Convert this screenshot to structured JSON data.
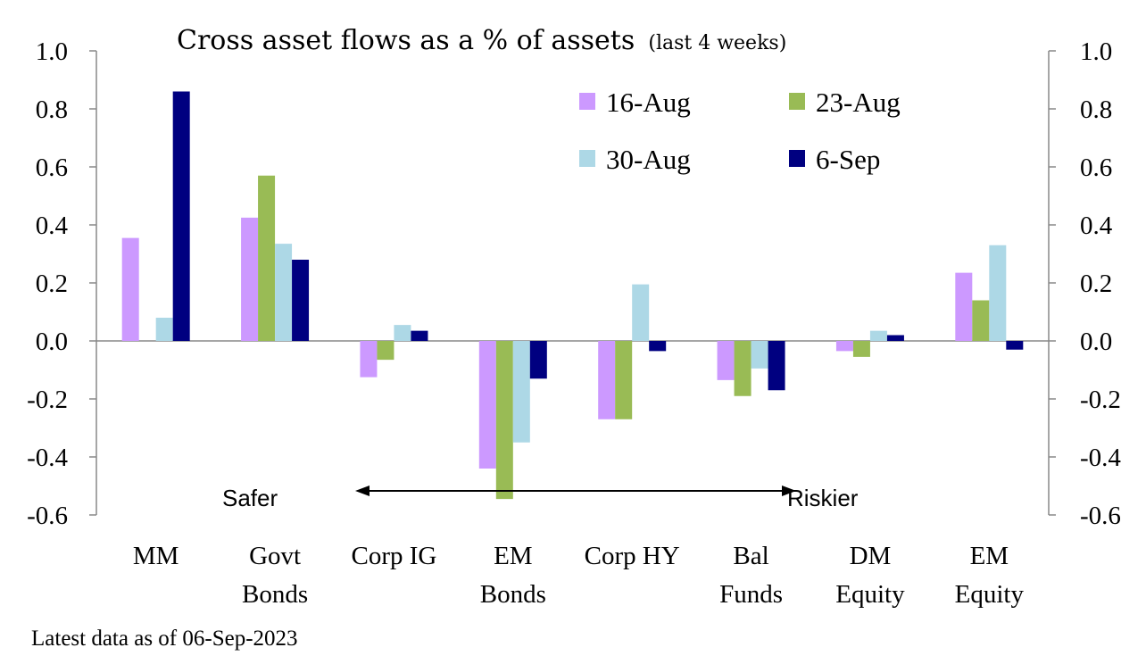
{
  "chart_data": {
    "type": "bar",
    "title": "Cross asset flows as a % of assets",
    "subtitle": "(last 4 weeks)",
    "categories": [
      [
        "MM"
      ],
      [
        "Govt",
        "Bonds"
      ],
      [
        "Corp IG"
      ],
      [
        "EM",
        "Bonds"
      ],
      [
        "Corp HY"
      ],
      [
        "Bal",
        "Funds"
      ],
      [
        "DM",
        "Equity"
      ],
      [
        "EM",
        "Equity"
      ]
    ],
    "series": [
      {
        "name": "16-Aug",
        "color": "#cc99ff",
        "values": [
          0.355,
          0.425,
          -0.125,
          -0.44,
          -0.27,
          -0.135,
          -0.035,
          0.235
        ]
      },
      {
        "name": "23-Aug",
        "color": "#99bb55",
        "values": [
          0.0,
          0.57,
          -0.065,
          -0.545,
          -0.27,
          -0.19,
          -0.055,
          0.14
        ]
      },
      {
        "name": "30-Aug",
        "color": "#add8e6",
        "values": [
          0.08,
          0.335,
          0.055,
          -0.35,
          0.195,
          -0.095,
          0.035,
          0.33
        ]
      },
      {
        "name": "6-Sep",
        "color": "#000080",
        "values": [
          0.86,
          0.28,
          0.035,
          -0.13,
          -0.035,
          -0.17,
          0.02,
          -0.03
        ]
      }
    ],
    "ylim": [
      -0.6,
      1.0
    ],
    "yticks": [
      "1.0",
      "0.8",
      "0.6",
      "0.4",
      "0.2",
      "0.0",
      "-0.2",
      "-0.4",
      "-0.6"
    ],
    "ytick_values": [
      1.0,
      0.8,
      0.6,
      0.4,
      0.2,
      0.0,
      -0.2,
      -0.4,
      -0.6
    ],
    "secondary_axis": true,
    "grid": false,
    "legend_position": "top-right",
    "annotations": {
      "left": "Safer",
      "right": "Riskier"
    }
  },
  "footnote": "Latest data as of 06-Sep-2023"
}
